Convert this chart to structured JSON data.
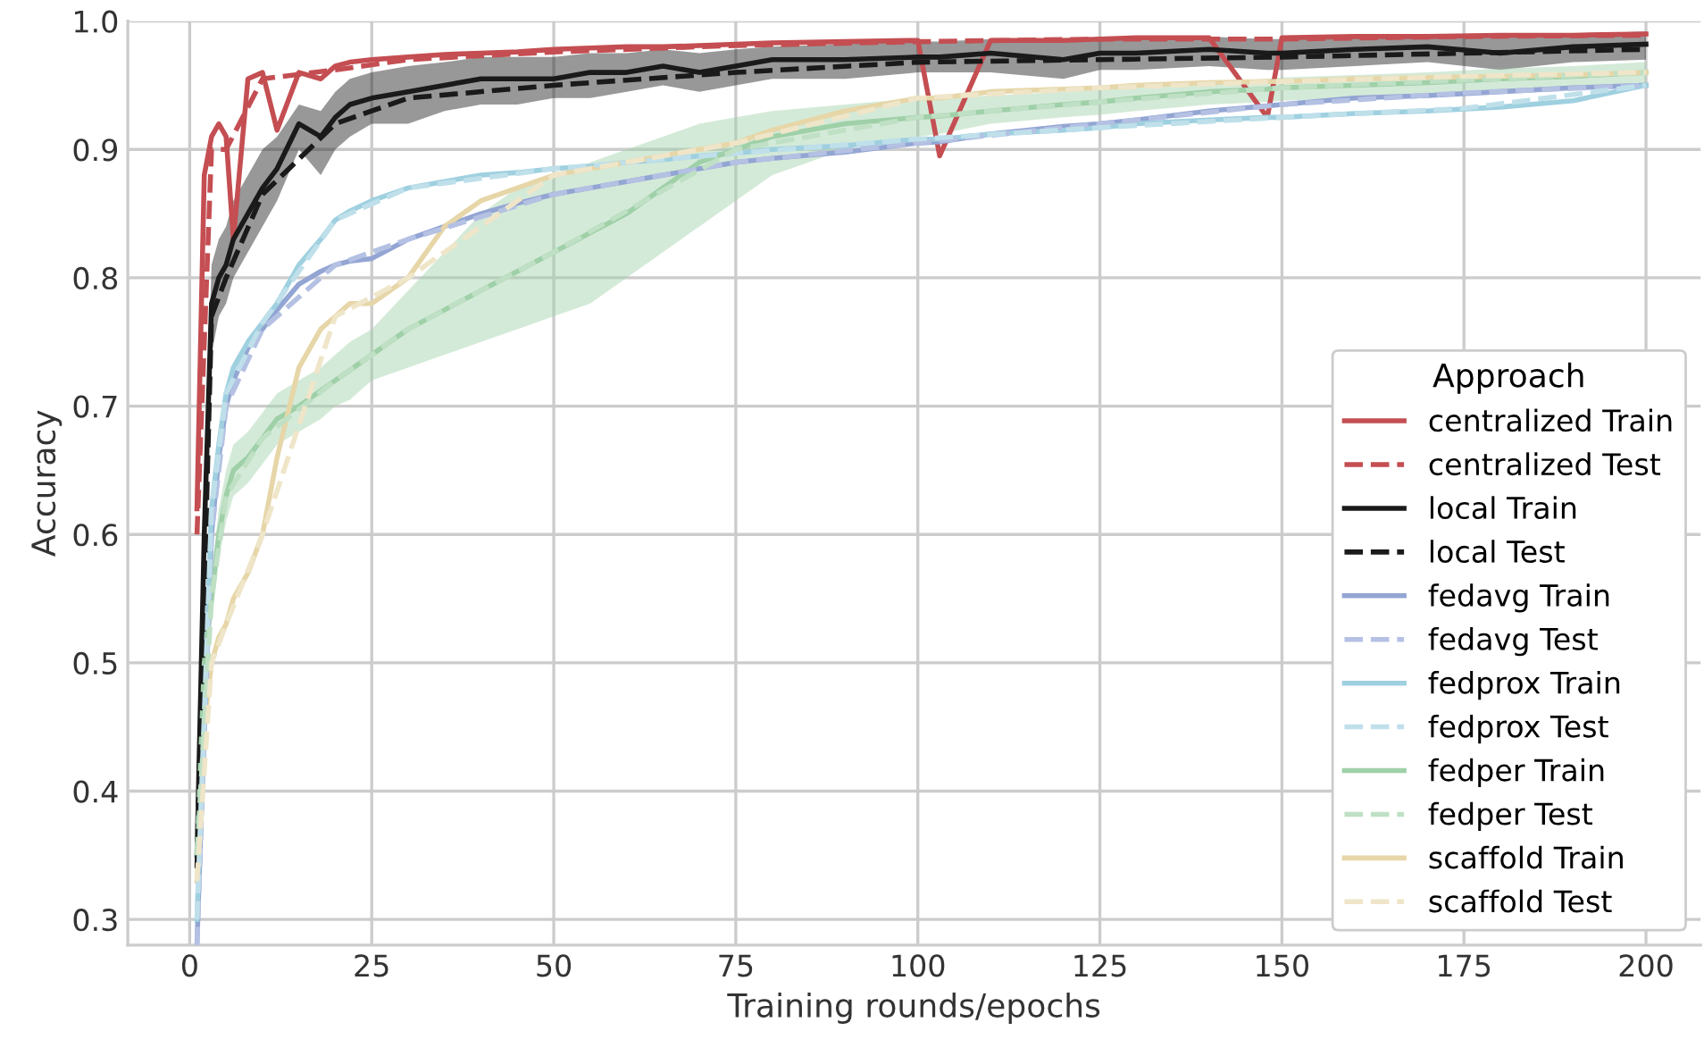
{
  "chart_data": {
    "type": "line",
    "xlabel": "Training rounds/epochs",
    "ylabel": "Accuracy",
    "legend_title": "Approach",
    "legend": "bottom right",
    "grid": true,
    "marker": "none",
    "xlim": [
      -8.5,
      207.5
    ],
    "ylim": [
      0.28,
      1.0
    ],
    "xticks": [
      0,
      25,
      50,
      75,
      100,
      125,
      150,
      175,
      200
    ],
    "yticks": [
      0.3,
      0.4,
      0.5,
      0.6,
      0.7,
      0.8,
      0.9,
      {
        "value": 1,
        "label": "1.0"
      }
    ],
    "x": [
      1,
      2,
      3,
      4,
      5,
      6,
      8,
      10,
      12,
      15,
      18,
      20,
      22,
      25,
      30,
      35,
      40,
      45,
      50,
      55,
      60,
      65,
      70,
      75,
      80,
      90,
      100,
      103,
      110,
      120,
      125,
      130,
      140,
      148,
      150,
      160,
      170,
      180,
      190,
      200
    ],
    "series": [
      {
        "name": "centralized Train",
        "color": "#c44e52",
        "line_style": "solid",
        "values": [
          0.62,
          0.88,
          0.91,
          0.92,
          0.91,
          0.83,
          0.955,
          0.96,
          0.915,
          0.96,
          0.955,
          0.965,
          0.968,
          0.97,
          0.972,
          0.974,
          0.975,
          0.976,
          0.978,
          0.979,
          0.98,
          0.98,
          0.981,
          0.982,
          0.983,
          0.984,
          0.985,
          0.895,
          0.985,
          0.985,
          0.986,
          0.987,
          0.987,
          0.925,
          0.987,
          0.988,
          0.988,
          0.989,
          0.989,
          0.99
        ]
      },
      {
        "name": "centralized Test",
        "color": "#c44e52",
        "line_style": "dashed",
        "x": [
          1,
          3,
          5,
          10,
          20,
          30,
          50,
          75,
          100,
          125,
          150,
          175,
          200
        ],
        "values": [
          0.6,
          0.9,
          0.9,
          0.955,
          0.962,
          0.97,
          0.976,
          0.981,
          0.984,
          0.986,
          0.986,
          0.988,
          0.989
        ]
      },
      {
        "name": "local Train",
        "color": "#1a1a1a",
        "line_style": "solid",
        "values": [
          0.35,
          0.6,
          0.78,
          0.8,
          0.81,
          0.83,
          0.85,
          0.87,
          0.885,
          0.92,
          0.91,
          0.925,
          0.935,
          0.94,
          0.945,
          0.95,
          0.955,
          0.955,
          0.955,
          0.96,
          0.96,
          0.965,
          0.96,
          0.965,
          0.97,
          0.97,
          0.972,
          0.972,
          0.975,
          0.97,
          0.975,
          0.975,
          0.978,
          0.975,
          0.975,
          0.978,
          0.98,
          0.975,
          0.98,
          0.982
        ],
        "lower": [
          0.34,
          0.57,
          0.74,
          0.77,
          0.78,
          0.8,
          0.82,
          0.84,
          0.86,
          0.9,
          0.88,
          0.9,
          0.91,
          0.92,
          0.92,
          0.93,
          0.935,
          0.935,
          0.94,
          0.94,
          0.945,
          0.95,
          0.945,
          0.95,
          0.955,
          0.955,
          0.96,
          0.96,
          0.96,
          0.955,
          0.962,
          0.962,
          0.965,
          0.962,
          0.962,
          0.965,
          0.968,
          0.962,
          0.968,
          0.97
        ],
        "upper": [
          0.36,
          0.63,
          0.81,
          0.83,
          0.84,
          0.86,
          0.88,
          0.9,
          0.91,
          0.935,
          0.93,
          0.945,
          0.955,
          0.96,
          0.965,
          0.968,
          0.972,
          0.972,
          0.972,
          0.975,
          0.975,
          0.978,
          0.975,
          0.978,
          0.98,
          0.982,
          0.984,
          0.984,
          0.986,
          0.984,
          0.986,
          0.986,
          0.988,
          0.986,
          0.986,
          0.988,
          0.99,
          0.988,
          0.99,
          0.992
        ]
      },
      {
        "name": "local Test",
        "color": "#1a1a1a",
        "line_style": "dashed",
        "x": [
          1,
          3,
          5,
          10,
          20,
          30,
          50,
          75,
          100,
          125,
          150,
          175,
          200
        ],
        "values": [
          0.34,
          0.77,
          0.8,
          0.865,
          0.92,
          0.94,
          0.95,
          0.96,
          0.968,
          0.97,
          0.972,
          0.975,
          0.978
        ]
      },
      {
        "name": "fedavg Train",
        "color": "#93a5d3",
        "line_style": "solid",
        "values": [
          0.28,
          0.45,
          0.6,
          0.66,
          0.7,
          0.72,
          0.745,
          0.76,
          0.775,
          0.795,
          0.805,
          0.81,
          0.813,
          0.815,
          0.83,
          0.84,
          0.85,
          0.858,
          0.865,
          0.87,
          0.875,
          0.88,
          0.885,
          0.89,
          0.893,
          0.898,
          0.905,
          0.906,
          0.912,
          0.918,
          0.92,
          0.923,
          0.93,
          0.934,
          0.935,
          0.94,
          0.942,
          0.945,
          0.948,
          0.95
        ]
      },
      {
        "name": "fedavg Test",
        "color": "#b4c1e3",
        "line_style": "dashed",
        "x": [
          1,
          3,
          5,
          10,
          20,
          30,
          50,
          75,
          100,
          125,
          150,
          175,
          200
        ],
        "values": [
          0.28,
          0.6,
          0.7,
          0.76,
          0.81,
          0.83,
          0.865,
          0.89,
          0.905,
          0.92,
          0.935,
          0.944,
          0.95
        ]
      },
      {
        "name": "fedprox Train",
        "color": "#9fd0e0",
        "line_style": "solid",
        "values": [
          0.3,
          0.47,
          0.62,
          0.67,
          0.71,
          0.73,
          0.75,
          0.765,
          0.78,
          0.81,
          0.83,
          0.845,
          0.852,
          0.86,
          0.87,
          0.875,
          0.88,
          0.882,
          0.885,
          0.887,
          0.89,
          0.892,
          0.895,
          0.897,
          0.9,
          0.903,
          0.908,
          0.908,
          0.912,
          0.915,
          0.917,
          0.92,
          0.923,
          0.925,
          0.925,
          0.928,
          0.93,
          0.933,
          0.938,
          0.95
        ]
      },
      {
        "name": "fedprox Test",
        "color": "#bfe0ea",
        "line_style": "dashed",
        "x": [
          1,
          3,
          5,
          10,
          20,
          30,
          50,
          75,
          100,
          125,
          150,
          175,
          200
        ],
        "values": [
          0.3,
          0.62,
          0.71,
          0.765,
          0.845,
          0.87,
          0.885,
          0.897,
          0.908,
          0.917,
          0.925,
          0.932,
          0.95
        ]
      },
      {
        "name": "fedper Train",
        "color": "#9fd0a8",
        "line_style": "solid",
        "values": [
          0.35,
          0.5,
          0.55,
          0.6,
          0.63,
          0.65,
          0.66,
          0.675,
          0.69,
          0.7,
          0.712,
          0.72,
          0.728,
          0.74,
          0.76,
          0.775,
          0.79,
          0.805,
          0.82,
          0.835,
          0.85,
          0.87,
          0.89,
          0.9,
          0.91,
          0.92,
          0.925,
          0.926,
          0.93,
          0.935,
          0.937,
          0.94,
          0.945,
          0.947,
          0.948,
          0.95,
          0.952,
          0.955,
          0.957,
          0.96
        ],
        "lower": [
          0.34,
          0.48,
          0.53,
          0.58,
          0.61,
          0.63,
          0.64,
          0.655,
          0.67,
          0.68,
          0.69,
          0.7,
          0.705,
          0.72,
          0.73,
          0.74,
          0.75,
          0.76,
          0.77,
          0.78,
          0.8,
          0.82,
          0.84,
          0.86,
          0.88,
          0.9,
          0.91,
          0.912,
          0.92,
          0.925,
          0.927,
          0.93,
          0.935,
          0.937,
          0.938,
          0.94,
          0.942,
          0.945,
          0.947,
          0.95
        ],
        "upper": [
          0.36,
          0.52,
          0.57,
          0.62,
          0.65,
          0.67,
          0.68,
          0.695,
          0.71,
          0.72,
          0.73,
          0.74,
          0.75,
          0.76,
          0.79,
          0.82,
          0.85,
          0.87,
          0.88,
          0.89,
          0.9,
          0.91,
          0.92,
          0.925,
          0.93,
          0.935,
          0.94,
          0.94,
          0.942,
          0.945,
          0.947,
          0.95,
          0.953,
          0.955,
          0.956,
          0.958,
          0.96,
          0.963,
          0.965,
          0.968
        ]
      },
      {
        "name": "fedper Test",
        "color": "#bfe0c4",
        "line_style": "dashed",
        "x": [
          1,
          3,
          5,
          10,
          20,
          30,
          50,
          75,
          100,
          125,
          150,
          175,
          200
        ],
        "values": [
          0.35,
          0.55,
          0.63,
          0.675,
          0.72,
          0.76,
          0.82,
          0.9,
          0.925,
          0.937,
          0.948,
          0.954,
          0.96
        ]
      },
      {
        "name": "scaffold Train",
        "color": "#e6d6a8",
        "line_style": "solid",
        "values": [
          0.33,
          0.45,
          0.5,
          0.52,
          0.53,
          0.55,
          0.57,
          0.6,
          0.66,
          0.73,
          0.76,
          0.77,
          0.78,
          0.78,
          0.8,
          0.84,
          0.86,
          0.87,
          0.88,
          0.885,
          0.89,
          0.895,
          0.9,
          0.905,
          0.915,
          0.93,
          0.94,
          0.94,
          0.945,
          0.947,
          0.948,
          0.95,
          0.952,
          0.953,
          0.953,
          0.955,
          0.956,
          0.957,
          0.958,
          0.96
        ]
      },
      {
        "name": "scaffold Test",
        "color": "#efe5c8",
        "line_style": "dashed",
        "x": [
          1,
          3,
          5,
          10,
          20,
          30,
          50,
          75,
          100,
          125,
          150,
          175,
          200
        ],
        "values": [
          0.33,
          0.5,
          0.53,
          0.6,
          0.77,
          0.8,
          0.88,
          0.905,
          0.94,
          0.948,
          0.953,
          0.957,
          0.96
        ]
      }
    ]
  }
}
